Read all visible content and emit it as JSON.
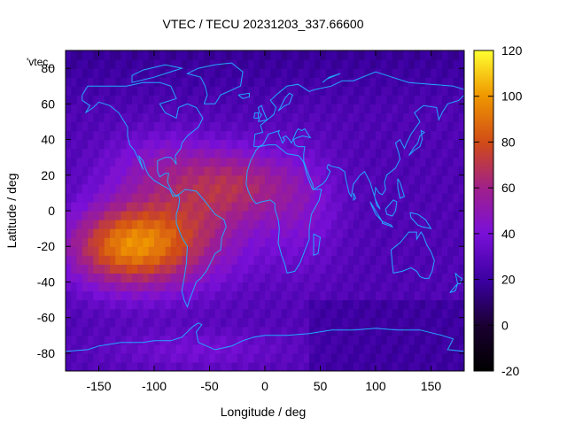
{
  "chart_data": {
    "type": "heatmap",
    "title": "VTEC / TECU 20231203_337.66600",
    "xlabel": "Longitude / deg",
    "ylabel": "Latitude / deg",
    "xlim": [
      -180,
      180
    ],
    "ylim": [
      -90,
      90
    ],
    "x_ticks": [
      -150,
      -100,
      -50,
      0,
      50,
      100,
      150
    ],
    "y_ticks": [
      -80,
      -60,
      -40,
      -20,
      0,
      20,
      40,
      60,
      80
    ],
    "colorbar": {
      "range": [
        -20,
        120
      ],
      "ticks": [
        -20,
        0,
        20,
        40,
        60,
        80,
        100,
        120
      ]
    },
    "series_key": "'vtec_",
    "overlay": "coastlines",
    "enhancements": [
      {
        "lon": -125,
        "lat": -20,
        "sigma_lon": 38,
        "sigma_lat": 16,
        "value": 58
      },
      {
        "lon": -70,
        "lat": -10,
        "sigma_lon": 45,
        "sigma_lat": 22,
        "value": 30
      },
      {
        "lon": -20,
        "lat": 15,
        "sigma_lon": 35,
        "sigma_lat": 14,
        "value": 28
      },
      {
        "lon": -90,
        "lat": 25,
        "sigma_lon": 40,
        "sigma_lat": 14,
        "value": 18
      },
      {
        "lon": 35,
        "lat": 0,
        "sigma_lon": 25,
        "sigma_lat": 25,
        "value": 14
      },
      {
        "lon": -60,
        "lat": -78,
        "sigma_lon": 60,
        "sigma_lat": 8,
        "value": 12
      }
    ],
    "background_value": 26
  }
}
